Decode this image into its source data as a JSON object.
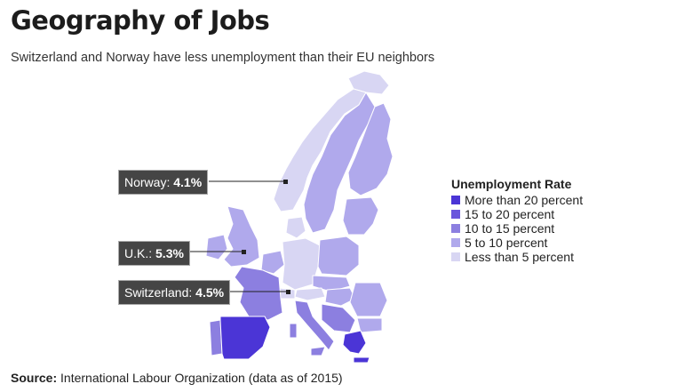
{
  "title": "Geography of Jobs",
  "subtitle": "Switzerland and Norway have less unemployment than their EU neighbors",
  "legend": {
    "title": "Unemployment Rate",
    "items": [
      {
        "label": "More than 20 percent",
        "color": "#4b35d6"
      },
      {
        "label": "15 to 20 percent",
        "color": "#6a56dc"
      },
      {
        "label": "10 to 15 percent",
        "color": "#8c7fe0"
      },
      {
        "label": "5 to 10 percent",
        "color": "#b0a9ec"
      },
      {
        "label": "Less than 5 percent",
        "color": "#d8d6f3"
      }
    ]
  },
  "callouts": {
    "norway": {
      "name": "Norway:",
      "value": "4.1%"
    },
    "uk": {
      "name": "U.K.:",
      "value": "5.3%"
    },
    "switzerland": {
      "name": "Switzerland:",
      "value": "4.5%"
    }
  },
  "source": {
    "label": "Source:",
    "text": "International Labour Organization (data as of 2015)"
  }
}
